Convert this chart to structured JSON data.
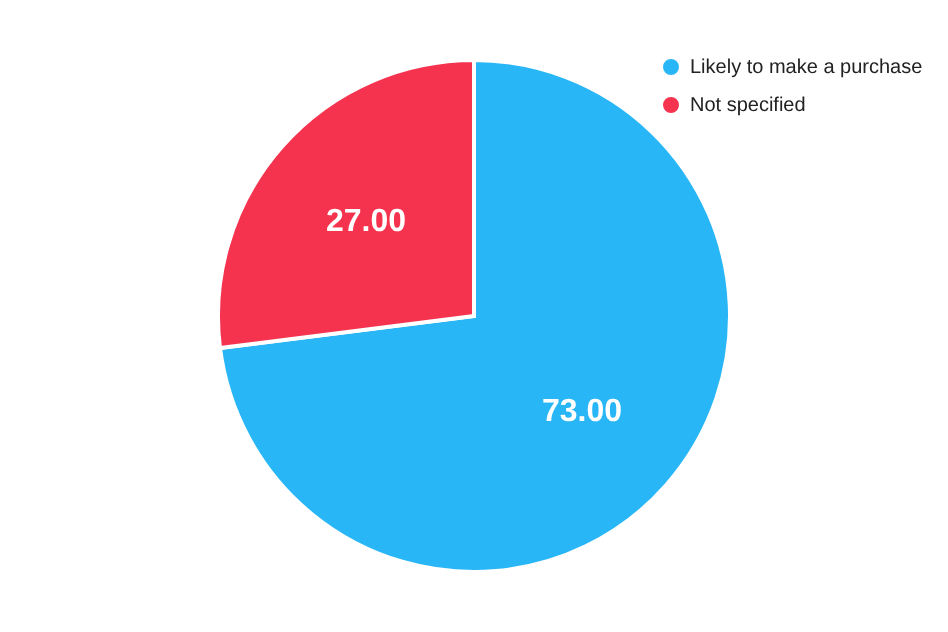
{
  "chart_data": {
    "type": "pie",
    "categories": [
      "Likely to make a purchase",
      "Not specified"
    ],
    "values": [
      73,
      27
    ],
    "colors": [
      "#29b6f6",
      "#f5334f"
    ],
    "value_labels": [
      "73.00",
      "27.00"
    ],
    "legend": "top right"
  }
}
